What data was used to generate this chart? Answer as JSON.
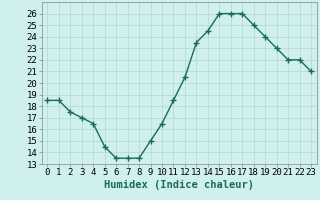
{
  "x": [
    0,
    1,
    2,
    3,
    4,
    5,
    6,
    7,
    8,
    9,
    10,
    11,
    12,
    13,
    14,
    15,
    16,
    17,
    18,
    19,
    20,
    21,
    22,
    23
  ],
  "y": [
    18.5,
    18.5,
    17.5,
    17.0,
    16.5,
    14.5,
    13.5,
    13.5,
    13.5,
    15.0,
    16.5,
    18.5,
    20.5,
    23.5,
    24.5,
    26.0,
    26.0,
    26.0,
    25.0,
    24.0,
    23.0,
    22.0,
    22.0,
    21.0
  ],
  "line_color": "#1a6b5a",
  "marker": "+",
  "marker_size": 4,
  "marker_linewidth": 1.0,
  "bg_color": "#cff0ec",
  "grid_color": "#b0d8d0",
  "xlabel": "Humidex (Indice chaleur)",
  "xlim": [
    -0.5,
    23.5
  ],
  "ylim": [
    13,
    27
  ],
  "yticks": [
    13,
    14,
    15,
    16,
    17,
    18,
    19,
    20,
    21,
    22,
    23,
    24,
    25,
    26
  ],
  "xticks": [
    0,
    1,
    2,
    3,
    4,
    5,
    6,
    7,
    8,
    9,
    10,
    11,
    12,
    13,
    14,
    15,
    16,
    17,
    18,
    19,
    20,
    21,
    22,
    23
  ],
  "tick_label_fontsize": 6.5,
  "xlabel_fontsize": 7.5,
  "line_width": 1.0
}
